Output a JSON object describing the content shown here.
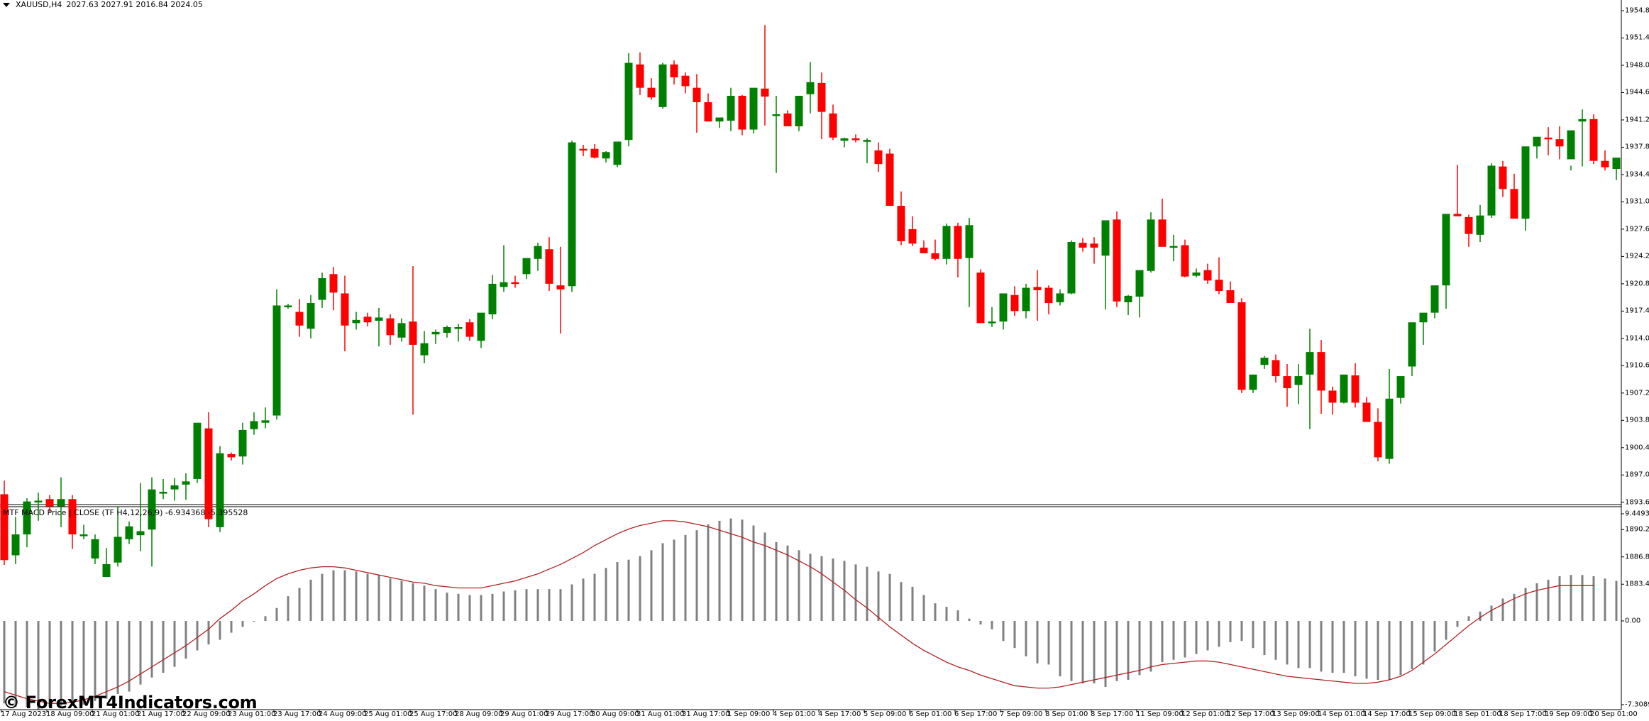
{
  "header": {
    "symbol": "XAUUSD,H4",
    "ohlc": "2027.63 2027.91 2016.84 2024.05"
  },
  "indicator": {
    "label": "MTF MACD Price | CLOSE  (TF H4,12,26,9) -6.934368 -5.395528",
    "top_value": "9.449311",
    "zero_value": "0.00",
    "bottom_value": "-7.3089"
  },
  "watermark": "© ForexMT4Indicators.com",
  "colors": {
    "bull": "#008000",
    "bear": "#FF0000",
    "histogram": "#808080",
    "signal": "#B22222",
    "axis": "#000000",
    "background": "#FFFFFF"
  },
  "chart_data": [
    {
      "type": "candlestick",
      "title": "XAUUSD,H4",
      "ylabel": "Price",
      "ylim": [
        1883.4,
        1956.5
      ],
      "y_ticks": [
        "1954.80",
        "1951.40",
        "1948.00",
        "1944.60",
        "1941.20",
        "1937.80",
        "1934.40",
        "1931.00",
        "1927.60",
        "1924.20",
        "1920.80",
        "1917.40",
        "1914.00",
        "1910.60",
        "1907.20",
        "1903.80",
        "1900.40",
        "1897.00",
        "1893.60",
        "1890.20",
        "1886.80",
        "1883.40"
      ],
      "x_ticks": [
        "17 Aug 2023",
        "18 Aug 09:00",
        "21 Aug 01:00",
        "21 Aug 17:00",
        "22 Aug 09:00",
        "23 Aug 01:00",
        "23 Aug 17:00",
        "24 Aug 09:00",
        "25 Aug 01:00",
        "25 Aug 17:00",
        "28 Aug 09:00",
        "29 Aug 01:00",
        "29 Aug 17:00",
        "30 Aug 09:00",
        "31 Aug 01:00",
        "31 Aug 17:00",
        "1 Sep 09:00",
        "4 Sep 01:00",
        "4 Sep 17:00",
        "5 Sep 09:00",
        "6 Sep 01:00",
        "6 Sep 17:00",
        "7 Sep 09:00",
        "8 Sep 01:00",
        "8 Sep 17:00",
        "11 Sep 09:00",
        "12 Sep 01:00",
        "12 Sep 17:00",
        "13 Sep 09:00",
        "14 Sep 01:00",
        "14 Sep 17:00",
        "15 Sep 09:00",
        "18 Sep 01:00",
        "18 Sep 17:00",
        "19 Sep 09:00",
        "20 Sep 01:00"
      ],
      "ohlc": [
        [
          1894.6,
          1896.3,
          1885.8,
          1886.4
        ],
        [
          1887.0,
          1891.8,
          1885.9,
          1889.6
        ],
        [
          1889.6,
          1894.1,
          1888.0,
          1893.7
        ],
        [
          1893.8,
          1894.8,
          1891.3,
          1893.8
        ],
        [
          1894.0,
          1894.5,
          1892.4,
          1893.1
        ],
        [
          1893.1,
          1896.7,
          1890.5,
          1894.0
        ],
        [
          1894.0,
          1894.5,
          1887.8,
          1889.6
        ],
        [
          1889.4,
          1890.8,
          1889.0,
          1889.6
        ],
        [
          1886.6,
          1889.6,
          1885.9,
          1889.0
        ],
        [
          1884.3,
          1887.9,
          1884.4,
          1885.9
        ],
        [
          1886.1,
          1893.0,
          1885.6,
          1889.3
        ],
        [
          1889.0,
          1891.2,
          1888.4,
          1890.6
        ],
        [
          1889.5,
          1896.0,
          1887.5,
          1890.0
        ],
        [
          1890.2,
          1896.7,
          1885.6,
          1895.2
        ],
        [
          1894.8,
          1896.5,
          1894.0,
          1894.9
        ],
        [
          1895.2,
          1896.6,
          1893.8,
          1895.7
        ],
        [
          1895.8,
          1897.2,
          1893.9,
          1896.2
        ],
        [
          1896.5,
          1902.0,
          1896.0,
          1903.5
        ],
        [
          1902.8,
          1904.8,
          1890.5,
          1891.5
        ],
        [
          1890.5,
          1900.6,
          1889.9,
          1899.7
        ],
        [
          1899.6,
          1899.8,
          1898.8,
          1899.2
        ],
        [
          1899.3,
          1903.5,
          1898.3,
          1902.6
        ],
        [
          1902.7,
          1904.8,
          1902.0,
          1903.7
        ],
        [
          1903.5,
          1905.4,
          1902.8,
          1903.8
        ],
        [
          1904.4,
          1920.1,
          1903.9,
          1918.1
        ],
        [
          1918.1,
          1918.3,
          1917.7,
          1918.1
        ],
        [
          1917.3,
          1918.9,
          1914.2,
          1915.6
        ],
        [
          1915.2,
          1919.4,
          1914.0,
          1918.4
        ],
        [
          1918.8,
          1922.2,
          1917.8,
          1921.5
        ],
        [
          1922.0,
          1922.9,
          1917.5,
          1919.7
        ],
        [
          1919.6,
          1921.8,
          1912.4,
          1915.6
        ],
        [
          1915.9,
          1917.3,
          1915.1,
          1916.3
        ],
        [
          1916.7,
          1917.2,
          1915.5,
          1916.0
        ],
        [
          1916.2,
          1917.8,
          1913.0,
          1916.6
        ],
        [
          1916.5,
          1917.0,
          1913.2,
          1914.4
        ],
        [
          1914.1,
          1916.5,
          1913.6,
          1915.9
        ],
        [
          1916.1,
          1923.0,
          1904.5,
          1913.2
        ],
        [
          1911.9,
          1914.9,
          1910.9,
          1913.4
        ],
        [
          1914.5,
          1915.1,
          1913.3,
          1914.8
        ],
        [
          1914.7,
          1915.6,
          1914.1,
          1915.4
        ],
        [
          1915.4,
          1915.8,
          1913.6,
          1915.4
        ],
        [
          1916.0,
          1916.4,
          1913.7,
          1914.2
        ],
        [
          1913.7,
          1916.4,
          1912.8,
          1917.2
        ],
        [
          1917.0,
          1921.9,
          1916.4,
          1920.8
        ],
        [
          1920.4,
          1925.6,
          1919.8,
          1921.0
        ],
        [
          1921.0,
          1921.8,
          1920.3,
          1920.9
        ],
        [
          1922.0,
          1923.7,
          1921.4,
          1924.0
        ],
        [
          1923.9,
          1925.9,
          1922.4,
          1925.5
        ],
        [
          1925.1,
          1926.6,
          1919.9,
          1920.8
        ],
        [
          1920.6,
          1925.4,
          1914.6,
          1920.1
        ],
        [
          1920.5,
          1938.6,
          1919.8,
          1938.4
        ],
        [
          1937.6,
          1938.1,
          1936.7,
          1937.5
        ],
        [
          1937.6,
          1938.2,
          1936.4,
          1936.5
        ],
        [
          1936.4,
          1937.3,
          1935.9,
          1937.2
        ],
        [
          1935.6,
          1937.6,
          1935.3,
          1938.5
        ],
        [
          1938.7,
          1949.5,
          1937.9,
          1948.3
        ],
        [
          1948.1,
          1949.6,
          1944.3,
          1945.2
        ],
        [
          1945.2,
          1946.4,
          1943.7,
          1944.0
        ],
        [
          1942.8,
          1948.3,
          1942.6,
          1948.1
        ],
        [
          1948.1,
          1948.6,
          1945.6,
          1946.5
        ],
        [
          1946.7,
          1947.1,
          1944.5,
          1945.4
        ],
        [
          1945.2,
          1946.9,
          1939.6,
          1943.4
        ],
        [
          1943.4,
          1944.5,
          1941.6,
          1941.0
        ],
        [
          1941.0,
          1941.4,
          1940.2,
          1941.5
        ],
        [
          1941.1,
          1945.2,
          1939.8,
          1944.2
        ],
        [
          1944.2,
          1944.3,
          1939.3,
          1940.0
        ],
        [
          1940.0,
          1944.8,
          1939.5,
          1945.2
        ],
        [
          1945.1,
          1953.0,
          1940.5,
          1944.1
        ],
        [
          1941.9,
          1944.2,
          1934.6,
          1941.9
        ],
        [
          1942.0,
          1942.4,
          1940.6,
          1940.4
        ],
        [
          1940.4,
          1944.2,
          1939.8,
          1944.2
        ],
        [
          1944.4,
          1948.4,
          1942.0,
          1945.9
        ],
        [
          1945.8,
          1947.1,
          1938.8,
          1942.2
        ],
        [
          1942.0,
          1943.1,
          1938.7,
          1939.0
        ],
        [
          1938.6,
          1939.0,
          1937.8,
          1938.9
        ],
        [
          1938.9,
          1939.4,
          1938.4,
          1938.7
        ],
        [
          1938.6,
          1938.9,
          1935.8,
          1938.7
        ],
        [
          1937.4,
          1938.4,
          1934.7,
          1935.7
        ],
        [
          1937.0,
          1937.6,
          1930.7,
          1930.5
        ],
        [
          1930.5,
          1932.3,
          1925.6,
          1926.1
        ],
        [
          1927.6,
          1929.2,
          1925.5,
          1925.8
        ],
        [
          1925.3,
          1926.2,
          1924.8,
          1924.6
        ],
        [
          1924.6,
          1926.3,
          1923.7,
          1923.9
        ],
        [
          1923.9,
          1928.3,
          1923.2,
          1928.0
        ],
        [
          1928.0,
          1928.4,
          1921.6,
          1923.9
        ],
        [
          1924.0,
          1929.0,
          1917.9,
          1928.1
        ],
        [
          1922.2,
          1922.6,
          1916.8,
          1915.9
        ],
        [
          1915.9,
          1917.9,
          1915.4,
          1916.1
        ],
        [
          1916.1,
          1919.5,
          1915.1,
          1919.6
        ],
        [
          1919.4,
          1920.5,
          1916.8,
          1917.4
        ],
        [
          1917.4,
          1920.8,
          1916.5,
          1920.3
        ],
        [
          1920.4,
          1922.5,
          1916.2,
          1920.0
        ],
        [
          1920.3,
          1920.6,
          1917.0,
          1918.4
        ],
        [
          1918.5,
          1920.1,
          1918.1,
          1919.6
        ],
        [
          1919.6,
          1926.2,
          1919.5,
          1926.0
        ],
        [
          1925.9,
          1926.5,
          1924.8,
          1925.3
        ],
        [
          1925.8,
          1926.6,
          1923.3,
          1925.3
        ],
        [
          1924.3,
          1928.7,
          1917.6,
          1928.7
        ],
        [
          1928.8,
          1929.8,
          1917.9,
          1918.6
        ],
        [
          1918.5,
          1919.4,
          1916.9,
          1919.3
        ],
        [
          1919.2,
          1922.4,
          1916.6,
          1922.5
        ],
        [
          1922.4,
          1929.7,
          1922.2,
          1928.8
        ],
        [
          1928.8,
          1931.4,
          1925.7,
          1925.4
        ],
        [
          1925.4,
          1926.9,
          1923.6,
          1925.5
        ],
        [
          1925.6,
          1926.3,
          1921.6,
          1921.7
        ],
        [
          1921.8,
          1922.7,
          1921.6,
          1922.2
        ],
        [
          1922.5,
          1923.3,
          1920.8,
          1921.2
        ],
        [
          1921.3,
          1924.1,
          1919.5,
          1919.9
        ],
        [
          1920.0,
          1921.1,
          1919.0,
          1918.4
        ],
        [
          1918.5,
          1919.0,
          1907.2,
          1907.6
        ],
        [
          1907.6,
          1909.3,
          1907.2,
          1909.5
        ],
        [
          1910.7,
          1911.8,
          1910.2,
          1911.6
        ],
        [
          1911.3,
          1912.0,
          1908.5,
          1909.3
        ],
        [
          1909.3,
          1910.8,
          1905.5,
          1907.8
        ],
        [
          1908.2,
          1910.8,
          1905.8,
          1909.3
        ],
        [
          1909.5,
          1915.2,
          1902.7,
          1912.3
        ],
        [
          1912.3,
          1913.8,
          1904.6,
          1907.5
        ],
        [
          1907.5,
          1908.0,
          1904.5,
          1906.0
        ],
        [
          1906.0,
          1909.1,
          1905.9,
          1909.5
        ],
        [
          1909.4,
          1910.9,
          1905.4,
          1906.0
        ],
        [
          1906.0,
          1906.7,
          1904.1,
          1903.6
        ],
        [
          1903.6,
          1905.3,
          1898.7,
          1899.2
        ],
        [
          1899.0,
          1910.2,
          1898.4,
          1906.5
        ],
        [
          1906.6,
          1907.3,
          1905.9,
          1909.3
        ],
        [
          1910.5,
          1912.9,
          1909.3,
          1916.0
        ],
        [
          1916.0,
          1916.6,
          1913.2,
          1917.2
        ],
        [
          1917.2,
          1920.3,
          1916.5,
          1920.6
        ],
        [
          1920.6,
          1924.7,
          1917.7,
          1929.5
        ],
        [
          1929.5,
          1935.6,
          1929.2,
          1929.2
        ],
        [
          1929.1,
          1929.4,
          1925.4,
          1927.0
        ],
        [
          1926.9,
          1930.6,
          1926.0,
          1929.3
        ],
        [
          1929.3,
          1935.8,
          1929.0,
          1935.5
        ],
        [
          1935.4,
          1936.1,
          1931.6,
          1932.6
        ],
        [
          1932.6,
          1934.5,
          1930.9,
          1928.9
        ],
        [
          1928.9,
          1936.7,
          1927.4,
          1937.9
        ],
        [
          1937.9,
          1939.0,
          1936.4,
          1939.1
        ],
        [
          1939.0,
          1940.3,
          1936.8,
          1938.8
        ],
        [
          1938.8,
          1940.4,
          1936.3,
          1937.9
        ],
        [
          1936.3,
          1935.5,
          1934.9,
          1939.9
        ],
        [
          1941.0,
          1942.5,
          1935.4,
          1941.3
        ],
        [
          1941.3,
          1941.9,
          1935.7,
          1936.1
        ],
        [
          1936.1,
          1937.4,
          1934.9,
          1935.3
        ],
        [
          1935.1,
          1936.3,
          1933.7,
          1936.5
        ],
        [
          1936.8,
          1937.6,
          1932.9,
          1937.6
        ]
      ]
    },
    {
      "type": "bar+line",
      "title": "MTF MACD Price | CLOSE (TF H4,12,26,9)",
      "ylim": [
        -7.3089,
        9.449311
      ],
      "zero_line": 0.0,
      "histogram": [
        -7.0,
        -7.3,
        -7.3,
        -7.5,
        -7.3,
        -7.2,
        -7.2,
        -7.1,
        -6.8,
        -6.6,
        -6.2,
        -6.0,
        -5.4,
        -4.8,
        -4.4,
        -3.9,
        -3.2,
        -2.5,
        -2.0,
        -1.6,
        -1.0,
        -0.5,
        0.0,
        0.4,
        1.1,
        2.1,
        2.8,
        3.5,
        4.0,
        4.3,
        4.3,
        4.2,
        4.0,
        3.9,
        3.6,
        3.4,
        3.2,
        3.0,
        2.7,
        2.4,
        2.3,
        2.2,
        2.2,
        2.3,
        2.5,
        2.6,
        2.7,
        2.7,
        2.7,
        2.7,
        3.1,
        3.6,
        4.0,
        4.5,
        5.0,
        5.2,
        5.5,
        6.0,
        6.6,
        6.9,
        7.3,
        7.7,
        8.2,
        8.5,
        8.7,
        8.6,
        8.1,
        7.5,
        6.7,
        6.4,
        6.0,
        5.7,
        5.5,
        5.3,
        5.1,
        4.8,
        4.6,
        4.2,
        4.0,
        3.3,
        2.9,
        2.2,
        1.5,
        1.2,
        0.9,
        0.2,
        -0.3,
        -0.7,
        -1.7,
        -2.3,
        -3.0,
        -3.6,
        -3.7,
        -4.7,
        -5.1,
        -5.3,
        -5.3,
        -5.6,
        -5.1,
        -5.0,
        -4.6,
        -4.3,
        -3.5,
        -3.3,
        -3.1,
        -2.8,
        -2.5,
        -2.2,
        -1.8,
        -1.7,
        -2.3,
        -2.9,
        -3.3,
        -3.7,
        -4.0,
        -4.0,
        -4.3,
        -4.4,
        -4.4,
        -4.7,
        -4.9,
        -5.0,
        -5.0,
        -4.6,
        -4.1,
        -3.7,
        -2.6,
        -1.6,
        -0.5,
        0.4,
        0.8,
        1.3,
        1.9,
        2.3,
        2.8,
        3.2,
        3.5,
        3.8,
        3.9,
        3.9,
        3.8,
        3.6,
        3.4,
        3.0
      ],
      "signal": [
        -6.0,
        -6.3,
        -6.6,
        -6.8,
        -7.0,
        -7.0,
        -6.9,
        -6.7,
        -6.4,
        -6.0,
        -5.6,
        -5.1,
        -4.5,
        -3.9,
        -3.3,
        -2.7,
        -2.1,
        -1.4,
        -0.7,
        0.2,
        0.9,
        1.7,
        2.3,
        3.0,
        3.6,
        4.0,
        4.3,
        4.5,
        4.6,
        4.6,
        4.5,
        4.3,
        4.1,
        3.9,
        3.7,
        3.5,
        3.3,
        3.2,
        3.0,
        2.9,
        2.8,
        2.8,
        2.8,
        3.0,
        3.2,
        3.4,
        3.7,
        4.0,
        4.4,
        4.8,
        5.3,
        5.8,
        6.4,
        6.9,
        7.4,
        7.8,
        8.1,
        8.3,
        8.5,
        8.5,
        8.4,
        8.2,
        8.0,
        7.7,
        7.4,
        7.1,
        6.7,
        6.4,
        6.0,
        5.6,
        5.1,
        4.6,
        4.0,
        3.3,
        2.6,
        1.8,
        1.1,
        0.3,
        -0.5,
        -1.2,
        -1.9,
        -2.5,
        -3.0,
        -3.5,
        -3.9,
        -4.2,
        -4.6,
        -4.9,
        -5.2,
        -5.5,
        -5.6,
        -5.7,
        -5.7,
        -5.6,
        -5.4,
        -5.2,
        -5.0,
        -4.8,
        -4.6,
        -4.4,
        -4.2,
        -3.9,
        -3.7,
        -3.6,
        -3.5,
        -3.4,
        -3.4,
        -3.5,
        -3.7,
        -3.9,
        -4.1,
        -4.3,
        -4.5,
        -4.7,
        -4.8,
        -4.9,
        -5.0,
        -5.1,
        -5.2,
        -5.3,
        -5.3,
        -5.2,
        -5.0,
        -4.7,
        -4.2,
        -3.5,
        -2.8,
        -2.0,
        -1.2,
        -0.4,
        0.3,
        0.9,
        1.4,
        1.9,
        2.3,
        2.6,
        2.8,
        3.0,
        3.0,
        3.0,
        3.0
      ]
    }
  ]
}
